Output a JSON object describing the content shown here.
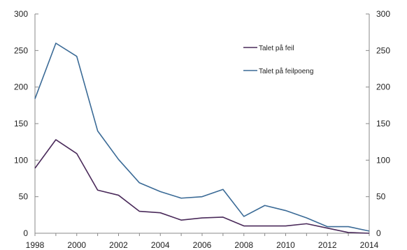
{
  "chart_data": {
    "type": "line",
    "title": "",
    "xlabel": "",
    "ylabel": "",
    "x": [
      1998,
      1999,
      2000,
      2001,
      2002,
      2003,
      2004,
      2005,
      2006,
      2007,
      2008,
      2009,
      2010,
      2011,
      2012,
      2013,
      2014
    ],
    "xlim": [
      1998,
      2014
    ],
    "ylim": [
      0,
      300
    ],
    "x_ticks": [
      "1998",
      "2000",
      "2002",
      "2004",
      "2006",
      "2008",
      "2010",
      "2012",
      "2014"
    ],
    "y_ticks": [
      "0",
      "50",
      "100",
      "150",
      "200",
      "250",
      "300"
    ],
    "y_ticks_right": [
      "0",
      "50",
      "100",
      "150",
      "200",
      "250",
      "300"
    ],
    "grid": false,
    "legend_position": "top-right",
    "series": [
      {
        "name": "Talet på feil",
        "color": "#4a2a5a",
        "values": [
          89,
          128,
          109,
          59,
          52,
          30,
          28,
          18,
          21,
          22,
          10,
          10,
          10,
          13,
          7,
          1,
          0
        ]
      },
      {
        "name": "Talet på feilpoeng",
        "color": "#3a6a96",
        "values": [
          184,
          260,
          242,
          140,
          101,
          69,
          57,
          48,
          50,
          60,
          23,
          38,
          31,
          21,
          9,
          9,
          3
        ]
      }
    ]
  }
}
